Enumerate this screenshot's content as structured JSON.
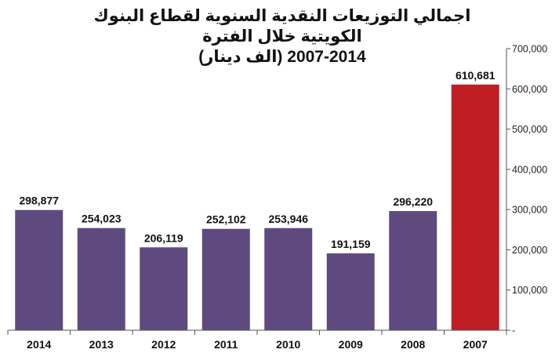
{
  "chart_data": {
    "type": "bar",
    "title_lines": [
      "اجمالي التوزيعات النقدية السنوية لقطاع البنوك الكويتية خلال الفترة",
      "2007-2014 (الف دينار)"
    ],
    "categories": [
      "2014",
      "2013",
      "2012",
      "2011",
      "2010",
      "2009",
      "2008",
      "2007"
    ],
    "values": [
      298877,
      254023,
      206119,
      252102,
      253946,
      191159,
      296220,
      610681
    ],
    "value_labels": [
      "298,877",
      "254,023",
      "206,119",
      "252,102",
      "253,946",
      "191,159",
      "296,220",
      "610,681"
    ],
    "bar_colors": [
      "#5f4a7f",
      "#5f4a7f",
      "#5f4a7f",
      "#5f4a7f",
      "#5f4a7f",
      "#5f4a7f",
      "#5f4a7f",
      "#be1e24"
    ],
    "ylim": [
      0,
      700000
    ],
    "yticks": [
      0,
      100000,
      200000,
      300000,
      400000,
      500000,
      600000,
      700000
    ],
    "ytick_labels": [
      "-",
      "100,000",
      "200,000",
      "300,000",
      "400,000",
      "500,000",
      "600,000",
      "700,000"
    ],
    "y_axis_side": "right",
    "grid": false,
    "legend": "none"
  }
}
